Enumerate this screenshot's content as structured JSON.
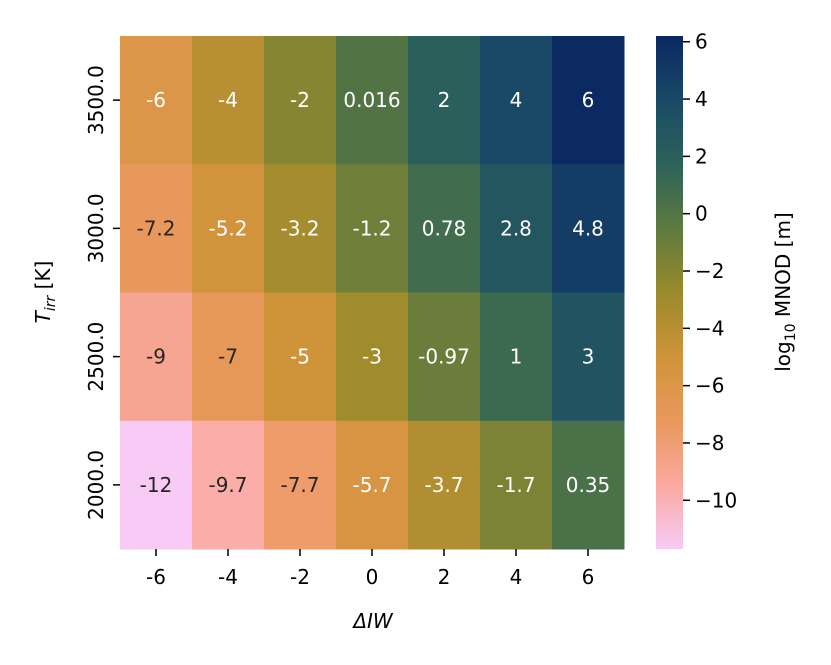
{
  "chart_data": {
    "type": "heatmap",
    "xlabel": "ΔIW",
    "ylabel": "T_irr [K]",
    "x_categories": [
      "-6",
      "-4",
      "-2",
      "0",
      "2",
      "4",
      "6"
    ],
    "y_categories": [
      "3500.0",
      "3000.0",
      "2500.0",
      "2000.0"
    ],
    "values": [
      [
        -6,
        -4,
        -2,
        0.016,
        2,
        4,
        6
      ],
      [
        -7.2,
        -5.2,
        -3.2,
        -1.2,
        0.78,
        2.8,
        4.8
      ],
      [
        -9,
        -7,
        -5,
        -3,
        -0.97,
        1,
        3
      ],
      [
        -12,
        -9.7,
        -7.7,
        -5.7,
        -3.7,
        -1.7,
        0.35
      ]
    ],
    "cell_labels": [
      [
        "-6",
        "-4",
        "-2",
        "0.016",
        "2",
        "4",
        "6"
      ],
      [
        "-7.2",
        "-5.2",
        "-3.2",
        "-1.2",
        "0.78",
        "2.8",
        "4.8"
      ],
      [
        "-9",
        "-7",
        "-5",
        "-3",
        "-0.97",
        "1",
        "3"
      ],
      [
        "-12",
        "-9.7",
        "-7.7",
        "-5.7",
        "-3.7",
        "-1.7",
        "0.35"
      ]
    ],
    "colorbar": {
      "label": "log10 MNOD [m]",
      "range": [
        -11.7,
        6.2
      ],
      "ticks": [
        -10,
        -8,
        -6,
        -4,
        -2,
        0,
        2,
        4,
        6
      ],
      "tick_labels": [
        "−10",
        "−8",
        "−6",
        "−4",
        "−2",
        "0",
        "2",
        "4",
        "6"
      ]
    },
    "colormap": [
      "#f8cbf7",
      "#faa9a0",
      "#e9985c",
      "#cf9439",
      "#9a8a2c",
      "#5e7a3f",
      "#2c6259",
      "#194a66",
      "#0b2762"
    ],
    "annotation_colors": {
      "light_cells": "#ffffff",
      "dark_cells": "#262626"
    }
  }
}
